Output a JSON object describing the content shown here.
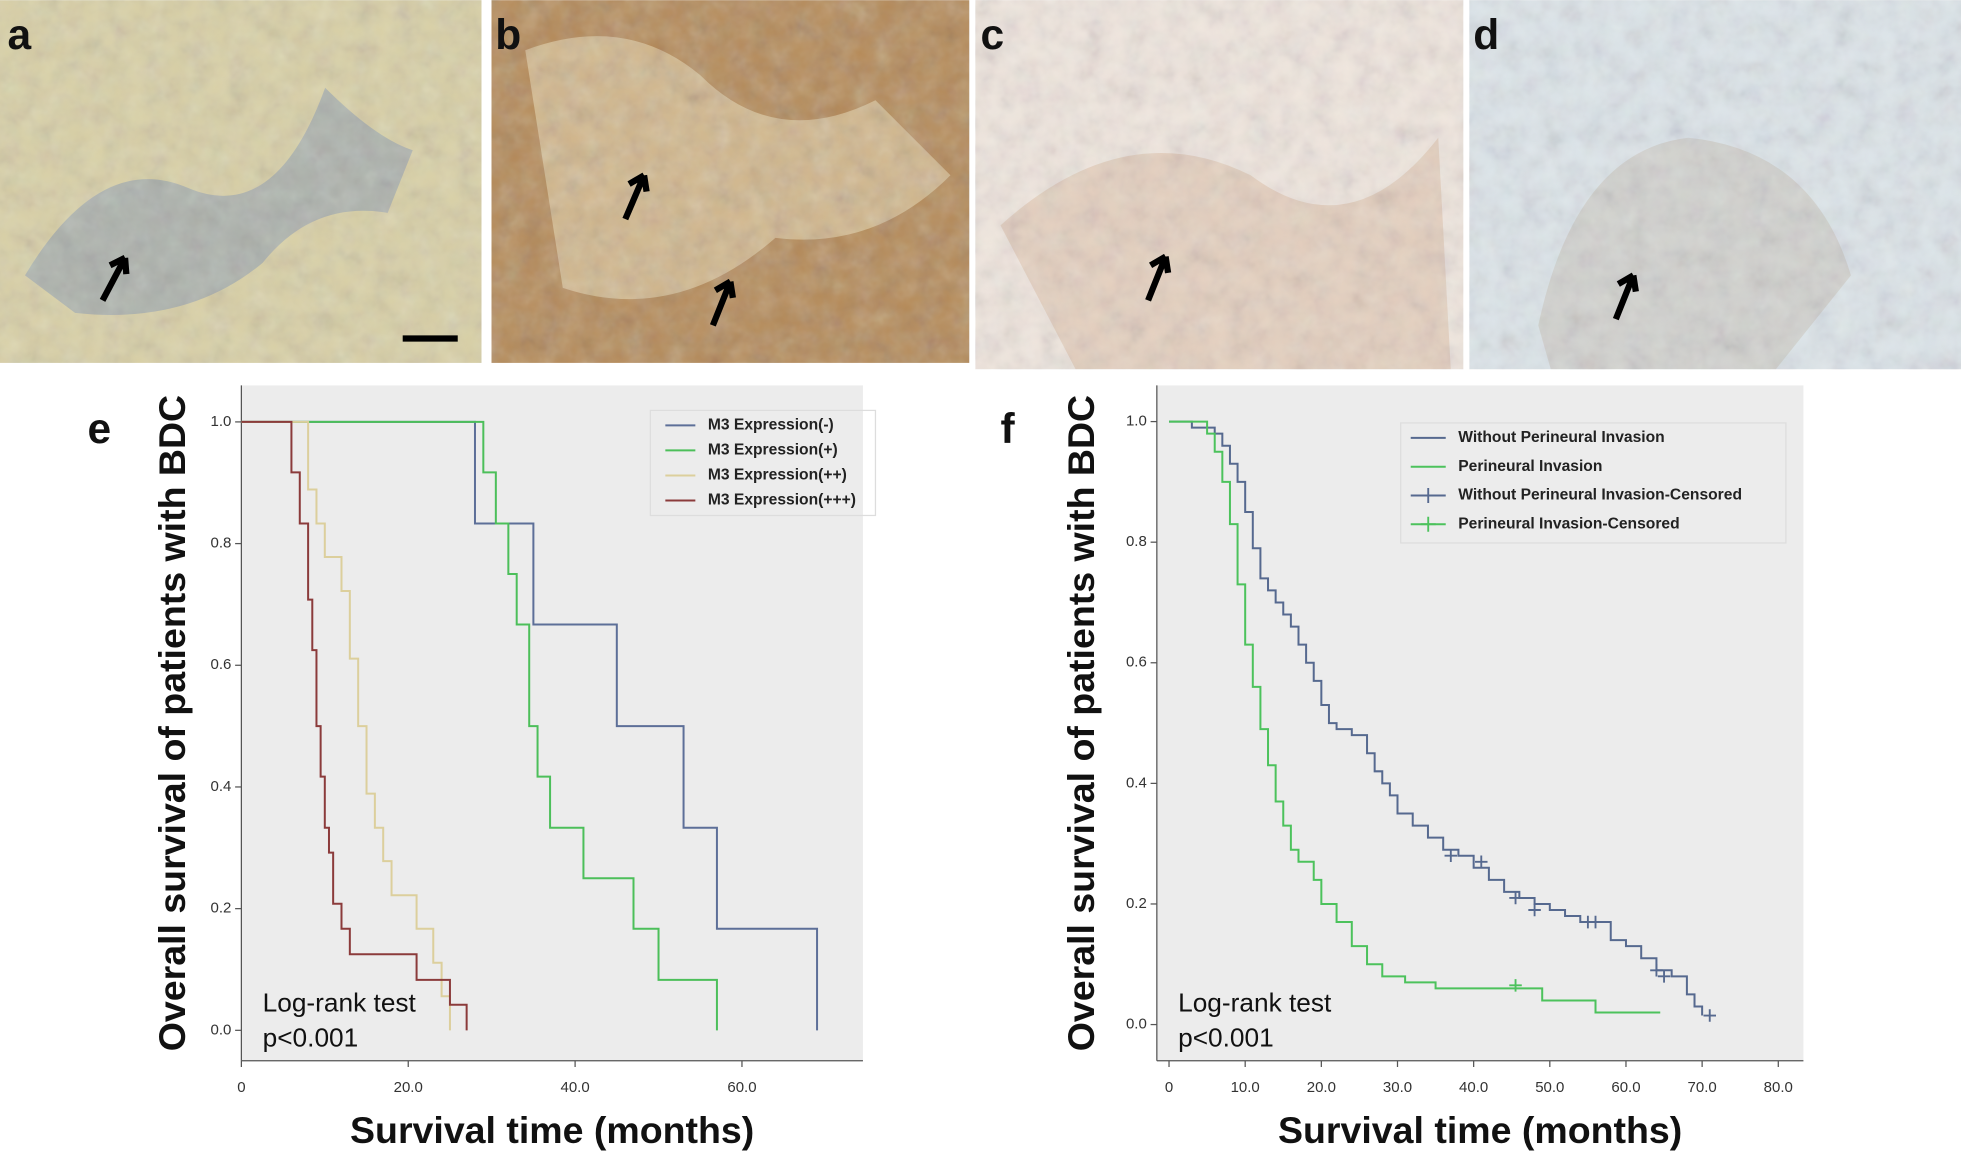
{
  "image_panels": [
    {
      "label": "a"
    },
    {
      "label": "b"
    },
    {
      "label": "c"
    },
    {
      "label": "d"
    }
  ],
  "chart_data": [
    {
      "type": "line",
      "step": true,
      "panel_label": "e",
      "y_label": "Overall survival of patients with BDC",
      "x_label": "Survival time (months)",
      "annotations": [
        "Log-rank test",
        "p<0.001"
      ],
      "xlim": [
        0,
        74.5
      ],
      "ylim": [
        -0.05,
        1.06
      ],
      "xticks": [
        0,
        {
          "value": 20,
          "label": "20.0"
        },
        {
          "value": 40,
          "label": "40.0"
        },
        {
          "value": 60,
          "label": "60.0"
        }
      ],
      "yticks": [
        {
          "value": 0,
          "label": "0.0"
        },
        {
          "value": 0.2,
          "label": "0.2"
        },
        {
          "value": 0.4,
          "label": "0.4"
        },
        {
          "value": 0.6,
          "label": "0.6"
        },
        {
          "value": 0.8,
          "label": "0.8"
        },
        {
          "value": 1,
          "label": "1.0"
        }
      ],
      "series": [
        {
          "name": "M3 Expression(-)",
          "color": "#5d6f98",
          "x": [
            0,
            28,
            35,
            45,
            53,
            57,
            69
          ],
          "values": [
            1,
            0.833,
            0.667,
            0.5,
            0.333,
            0.167,
            0
          ]
        },
        {
          "name": "M3 Expression(+)",
          "color": "#4cbf5a",
          "x": [
            0,
            29,
            30.5,
            32,
            33,
            34.5,
            35.5,
            37,
            41,
            47,
            50,
            57
          ],
          "values": [
            1,
            0.917,
            0.833,
            0.75,
            0.667,
            0.5,
            0.417,
            0.333,
            0.25,
            0.167,
            0.083,
            0
          ]
        },
        {
          "name": "M3 Expression(++)",
          "color": "#dccf9c",
          "x": [
            0,
            8,
            9,
            10,
            12,
            13,
            14,
            15,
            16,
            17,
            18,
            21,
            23,
            24,
            25
          ],
          "values": [
            1,
            0.889,
            0.833,
            0.778,
            0.722,
            0.611,
            0.5,
            0.389,
            0.333,
            0.278,
            0.222,
            0.167,
            0.111,
            0.056,
            0
          ]
        },
        {
          "name": "M3 Expression(+++)",
          "color": "#8b3b3b",
          "x": [
            0,
            6,
            7,
            8,
            8.5,
            9,
            9.5,
            10,
            10.5,
            11,
            12,
            13,
            21,
            25,
            27
          ],
          "values": [
            1,
            0.917,
            0.833,
            0.708,
            0.625,
            0.5,
            0.417,
            0.333,
            0.292,
            0.208,
            0.167,
            0.125,
            0.083,
            0.042,
            0
          ]
        }
      ]
    },
    {
      "type": "line",
      "step": true,
      "panel_label": "f",
      "y_label": "Overall survival of patients with BDC",
      "x_label": "Survival time (months)",
      "annotations": [
        "Log-rank test",
        "p<0.001"
      ],
      "xlim": [
        -1.6,
        83.3
      ],
      "ylim": [
        -0.06,
        1.06
      ],
      "xticks": [
        0,
        {
          "value": 10,
          "label": "10.0"
        },
        {
          "value": 20,
          "label": "20.0"
        },
        {
          "value": 30,
          "label": "30.0"
        },
        {
          "value": 40,
          "label": "40.0"
        },
        {
          "value": 50,
          "label": "50.0"
        },
        {
          "value": 60,
          "label": "60.0"
        },
        {
          "value": 70,
          "label": "70.0"
        },
        {
          "value": 80,
          "label": "80.0"
        }
      ],
      "yticks": [
        {
          "value": 0,
          "label": "0.0"
        },
        {
          "value": 0.2,
          "label": "0.2"
        },
        {
          "value": 0.4,
          "label": "0.4"
        },
        {
          "value": 0.6,
          "label": "0.6"
        },
        {
          "value": 0.8,
          "label": "0.8"
        },
        {
          "value": 1,
          "label": "1.0"
        }
      ],
      "series": [
        {
          "name": "Without Perineural Invasion",
          "color": "#56698f",
          "x": [
            0,
            3,
            6,
            7,
            8,
            9,
            10,
            11,
            12,
            13,
            14,
            15,
            16,
            17,
            18,
            19,
            20,
            21,
            22,
            24,
            26,
            27,
            28,
            29,
            30,
            32,
            34,
            36,
            38,
            40,
            42,
            44,
            46,
            48,
            50,
            52,
            54,
            56,
            58,
            60,
            62,
            64,
            66,
            68,
            69,
            70
          ],
          "values": [
            1,
            0.99,
            0.98,
            0.96,
            0.93,
            0.9,
            0.85,
            0.79,
            0.74,
            0.72,
            0.7,
            0.68,
            0.66,
            0.63,
            0.6,
            0.57,
            0.53,
            0.5,
            0.49,
            0.48,
            0.45,
            0.42,
            0.4,
            0.38,
            0.35,
            0.33,
            0.31,
            0.29,
            0.28,
            0.26,
            0.24,
            0.22,
            0.21,
            0.2,
            0.19,
            0.18,
            0.17,
            0.17,
            0.14,
            0.13,
            0.11,
            0.09,
            0.08,
            0.05,
            0.03,
            0.015
          ]
        },
        {
          "name": "Perineural Invasion",
          "color": "#4cc25c",
          "x": [
            0,
            5,
            6,
            7,
            8,
            9,
            10,
            11,
            12,
            13,
            14,
            15,
            16,
            17,
            19,
            20,
            22,
            24,
            26,
            28,
            31,
            35,
            49,
            56,
            64.5
          ],
          "values": [
            1,
            0.98,
            0.95,
            0.9,
            0.83,
            0.73,
            0.63,
            0.56,
            0.49,
            0.43,
            0.37,
            0.33,
            0.29,
            0.27,
            0.24,
            0.2,
            0.17,
            0.13,
            0.1,
            0.08,
            0.07,
            0.06,
            0.04,
            0.02,
            0.02
          ]
        },
        {
          "name": "Without Perineural Invasion-Censored",
          "color": "#56698f",
          "line": false,
          "marker": "plus",
          "x": [
            37,
            41,
            45.5,
            48,
            55,
            56,
            64,
            65,
            71
          ],
          "values": [
            0.28,
            0.27,
            0.21,
            0.19,
            0.17,
            0.17,
            0.09,
            0.08,
            0.015
          ]
        },
        {
          "name": "Perineural Invasion-Censored",
          "color": "#4cc25c",
          "line": false,
          "marker": "plus",
          "x": [
            45.5
          ],
          "values": [
            0.065
          ]
        }
      ]
    }
  ]
}
